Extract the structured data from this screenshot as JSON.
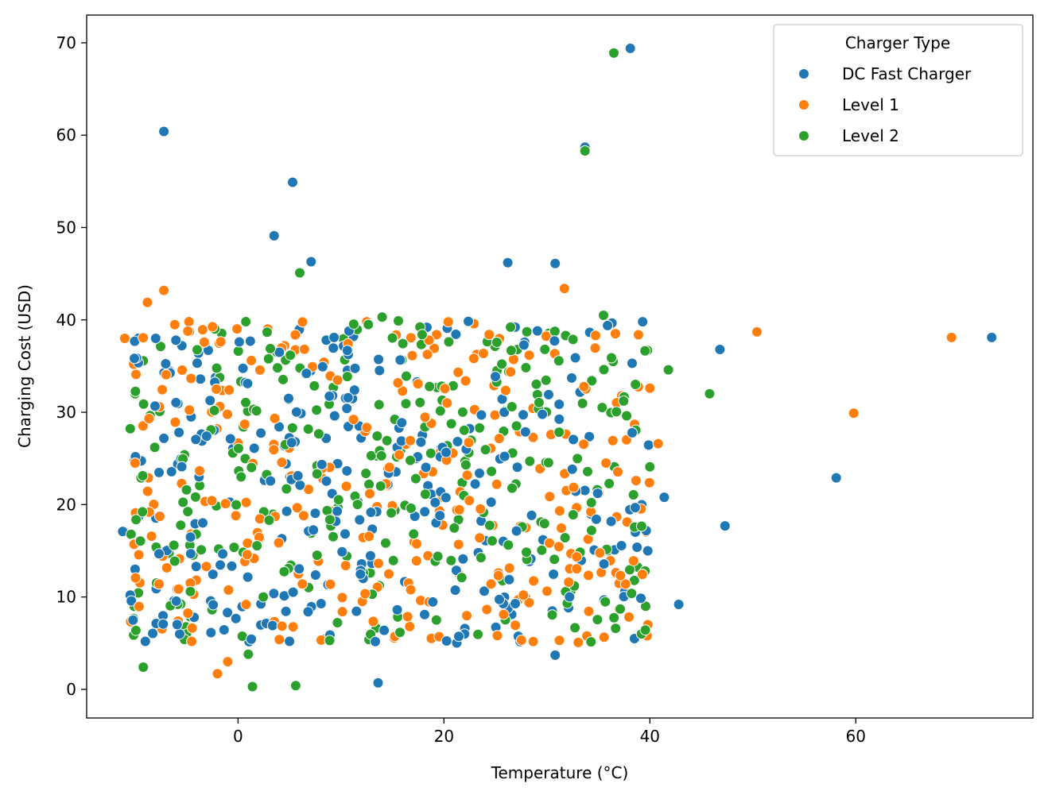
{
  "chart_data": {
    "type": "scatter",
    "title": "",
    "xlabel": "Temperature (°C)",
    "ylabel": "Charging Cost (USD)",
    "xlim": [
      -14.7,
      77.2
    ],
    "ylim": [
      -3.1,
      73.0
    ],
    "x_ticks": [
      0,
      20,
      40,
      60
    ],
    "y_ticks": [
      0,
      10,
      20,
      30,
      40,
      50,
      60,
      70
    ],
    "grid": false,
    "legend": {
      "title": "Charger Type",
      "placement": "top-right"
    },
    "colors": {
      "DC Fast Charger": "#1f77b4",
      "Level 1": "#ff7f0e",
      "Level 2": "#2ca02c"
    },
    "series": [
      {
        "name": "DC Fast Charger",
        "color": "#1f77b4",
        "notable_points": [
          [
            -7.2,
            60.4
          ],
          [
            5.3,
            54.9
          ],
          [
            3.5,
            49.1
          ],
          [
            7.1,
            46.3
          ],
          [
            26.2,
            46.2
          ],
          [
            30.8,
            46.1
          ],
          [
            33.7,
            58.7
          ],
          [
            38.1,
            69.4
          ],
          [
            46.8,
            36.8
          ],
          [
            47.3,
            17.7
          ],
          [
            41.4,
            20.8
          ],
          [
            42.8,
            9.2
          ],
          [
            58.1,
            22.9
          ],
          [
            73.2,
            38.1
          ],
          [
            13.6,
            0.7
          ],
          [
            30.8,
            3.7
          ],
          [
            -9.0,
            5.2
          ],
          [
            -10.2,
            7.5
          ],
          [
            -10.0,
            13.0
          ],
          [
            -8.0,
            38.0
          ],
          [
            5.0,
            5.2
          ],
          [
            22.0,
            6.0
          ],
          [
            38.5,
            5.5
          ],
          [
            39.8,
            15.0
          ],
          [
            -11.2,
            17.1
          ],
          [
            39.3,
            39.8
          ]
        ],
        "cluster": {
          "x_range": [
            -10.5,
            40.0
          ],
          "y_range": [
            5.0,
            40.0
          ],
          "approx_count": 300,
          "seed": 11
        }
      },
      {
        "name": "Level 1",
        "color": "#ff7f0e",
        "notable_points": [
          [
            -7.2,
            43.2
          ],
          [
            -8.8,
            41.9
          ],
          [
            31.7,
            43.4
          ],
          [
            50.4,
            38.7
          ],
          [
            69.3,
            38.1
          ],
          [
            59.8,
            29.9
          ],
          [
            -11.0,
            38.0
          ],
          [
            40.0,
            32.6
          ],
          [
            40.8,
            26.6
          ],
          [
            39.8,
            7.0
          ],
          [
            -2.0,
            1.7
          ],
          [
            -1.0,
            3.0
          ],
          [
            -4.5,
            5.2
          ],
          [
            -10.0,
            24.5
          ],
          [
            12.5,
            39.8
          ]
        ],
        "cluster": {
          "x_range": [
            -10.5,
            40.0
          ],
          "y_range": [
            5.0,
            40.0
          ],
          "approx_count": 300,
          "seed": 23
        }
      },
      {
        "name": "Level 2",
        "color": "#2ca02c",
        "notable_points": [
          [
            36.5,
            68.9
          ],
          [
            33.7,
            58.3
          ],
          [
            6.0,
            45.1
          ],
          [
            45.8,
            32.0
          ],
          [
            41.8,
            34.6
          ],
          [
            -9.2,
            2.4
          ],
          [
            1.4,
            0.3
          ],
          [
            5.6,
            0.4
          ],
          [
            1.0,
            3.8
          ],
          [
            -10.0,
            32.0
          ],
          [
            14.0,
            40.3
          ],
          [
            35.5,
            40.5
          ],
          [
            40.0,
            24.1
          ],
          [
            -5.0,
            6.0
          ]
        ],
        "cluster": {
          "x_range": [
            -10.5,
            40.0
          ],
          "y_range": [
            5.0,
            40.0
          ],
          "approx_count": 300,
          "seed": 37
        }
      }
    ]
  }
}
